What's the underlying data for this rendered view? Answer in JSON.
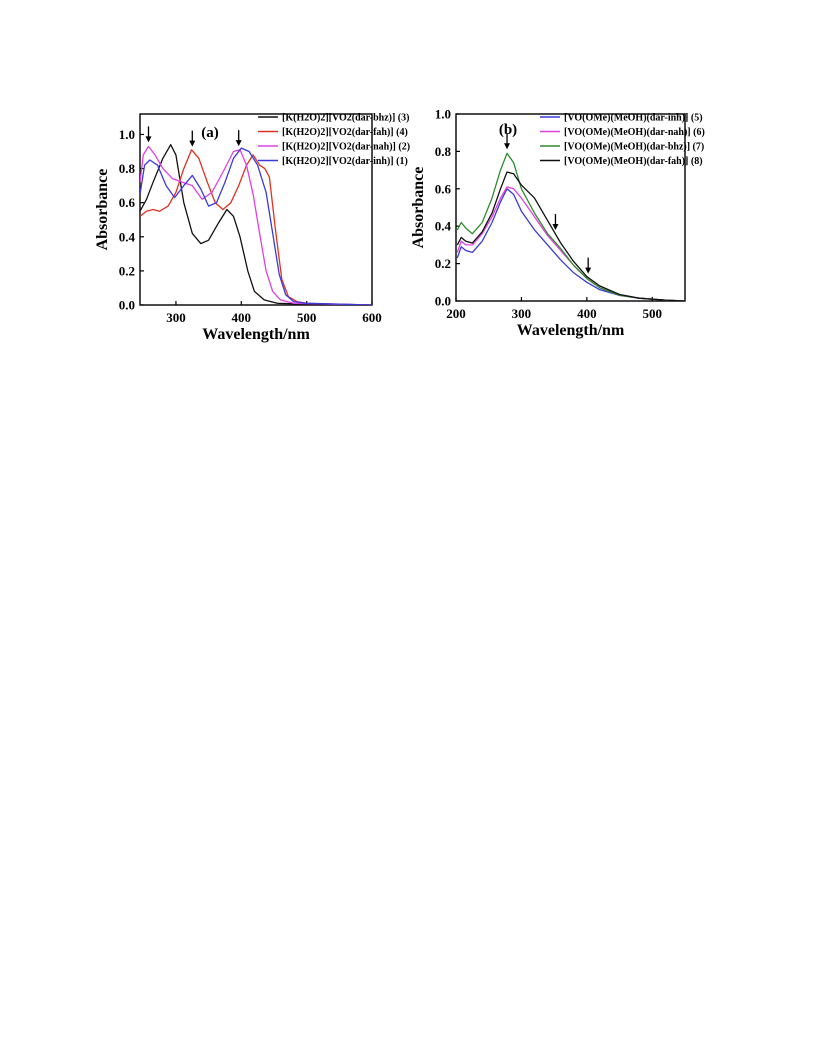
{
  "chart_data": [
    {
      "type": "line",
      "panel_label": "a",
      "xlabel": "Wavelength/nm",
      "ylabel": "Absorbance",
      "xlim": [
        245,
        600
      ],
      "ylim": [
        0,
        1.12
      ],
      "xticks": [
        300,
        400,
        500,
        600
      ],
      "yticks": [
        0.0,
        0.2,
        0.4,
        0.6,
        0.8,
        1.0
      ],
      "legend_position": "top-right",
      "arrows_at_x": [
        258,
        325,
        396
      ],
      "series": [
        {
          "name": "[K(H2O)2][VO2(dar-bhz)] (3)",
          "color": "#111111",
          "points": [
            [
              245,
              0.55
            ],
            [
              255,
              0.62
            ],
            [
              265,
              0.72
            ],
            [
              280,
              0.86
            ],
            [
              292,
              0.94
            ],
            [
              300,
              0.88
            ],
            [
              312,
              0.6
            ],
            [
              325,
              0.42
            ],
            [
              338,
              0.36
            ],
            [
              350,
              0.38
            ],
            [
              365,
              0.48
            ],
            [
              378,
              0.56
            ],
            [
              388,
              0.52
            ],
            [
              398,
              0.4
            ],
            [
              410,
              0.2
            ],
            [
              420,
              0.08
            ],
            [
              435,
              0.03
            ],
            [
              455,
              0.01
            ],
            [
              500,
              0.005
            ],
            [
              600,
              0.0
            ]
          ]
        },
        {
          "name": "[K(H2O)2][VO2(dar-fah)] (4)",
          "color": "#e03020",
          "points": [
            [
              245,
              0.52
            ],
            [
              255,
              0.55
            ],
            [
              265,
              0.56
            ],
            [
              275,
              0.55
            ],
            [
              288,
              0.58
            ],
            [
              300,
              0.66
            ],
            [
              312,
              0.8
            ],
            [
              324,
              0.91
            ],
            [
              335,
              0.86
            ],
            [
              348,
              0.72
            ],
            [
              360,
              0.6
            ],
            [
              372,
              0.56
            ],
            [
              384,
              0.6
            ],
            [
              396,
              0.7
            ],
            [
              408,
              0.82
            ],
            [
              418,
              0.88
            ],
            [
              428,
              0.82
            ],
            [
              436,
              0.8
            ],
            [
              443,
              0.75
            ],
            [
              452,
              0.45
            ],
            [
              462,
              0.15
            ],
            [
              472,
              0.05
            ],
            [
              485,
              0.02
            ],
            [
              500,
              0.01
            ],
            [
              600,
              0.0
            ]
          ]
        },
        {
          "name": "[K(H2O)2][VO2(dar-nah)] (2)",
          "color": "#e040e0",
          "points": [
            [
              245,
              0.72
            ],
            [
              250,
              0.88
            ],
            [
              258,
              0.93
            ],
            [
              268,
              0.88
            ],
            [
              280,
              0.8
            ],
            [
              295,
              0.74
            ],
            [
              310,
              0.72
            ],
            [
              325,
              0.7
            ],
            [
              340,
              0.62
            ],
            [
              355,
              0.66
            ],
            [
              372,
              0.78
            ],
            [
              388,
              0.9
            ],
            [
              398,
              0.91
            ],
            [
              408,
              0.82
            ],
            [
              418,
              0.65
            ],
            [
              428,
              0.42
            ],
            [
              438,
              0.2
            ],
            [
              448,
              0.08
            ],
            [
              460,
              0.03
            ],
            [
              480,
              0.01
            ],
            [
              600,
              0.0
            ]
          ]
        },
        {
          "name": "[K(H2O)2][VO2(dar-inh)] (1)",
          "color": "#3a3adc",
          "points": [
            [
              245,
              0.65
            ],
            [
              252,
              0.82
            ],
            [
              260,
              0.85
            ],
            [
              272,
              0.82
            ],
            [
              285,
              0.7
            ],
            [
              298,
              0.63
            ],
            [
              312,
              0.7
            ],
            [
              325,
              0.76
            ],
            [
              338,
              0.68
            ],
            [
              350,
              0.58
            ],
            [
              362,
              0.6
            ],
            [
              375,
              0.72
            ],
            [
              388,
              0.86
            ],
            [
              400,
              0.92
            ],
            [
              412,
              0.9
            ],
            [
              425,
              0.82
            ],
            [
              438,
              0.66
            ],
            [
              448,
              0.42
            ],
            [
              458,
              0.18
            ],
            [
              468,
              0.06
            ],
            [
              480,
              0.02
            ],
            [
              500,
              0.01
            ],
            [
              600,
              0.0
            ]
          ]
        }
      ]
    },
    {
      "type": "line",
      "panel_label": "b",
      "xlabel": "Wavelength/nm",
      "ylabel": "Absorbance",
      "xlim": [
        200,
        550
      ],
      "ylim": [
        0,
        1.0
      ],
      "xticks": [
        200,
        300,
        400,
        500
      ],
      "yticks": [
        0.0,
        0.2,
        0.4,
        0.6,
        0.8,
        1.0
      ],
      "legend_position": "top-right",
      "arrows_at_x": [
        278,
        352,
        402
      ],
      "series": [
        {
          "name": "[VO(OMe)(MeOH)(dar-inh)] (5)",
          "color": "#3a3adc",
          "points": [
            [
              202,
              0.23
            ],
            [
              208,
              0.29
            ],
            [
              215,
              0.27
            ],
            [
              225,
              0.26
            ],
            [
              240,
              0.32
            ],
            [
              255,
              0.42
            ],
            [
              268,
              0.53
            ],
            [
              278,
              0.6
            ],
            [
              288,
              0.57
            ],
            [
              300,
              0.48
            ],
            [
              320,
              0.38
            ],
            [
              340,
              0.3
            ],
            [
              360,
              0.22
            ],
            [
              380,
              0.15
            ],
            [
              400,
              0.1
            ],
            [
              420,
              0.06
            ],
            [
              450,
              0.03
            ],
            [
              480,
              0.015
            ],
            [
              520,
              0.005
            ],
            [
              550,
              0.0
            ]
          ]
        },
        {
          "name": "[VO(OMe)(MeOH)(dar-nah)] (6)",
          "color": "#e040e0",
          "points": [
            [
              202,
              0.26
            ],
            [
              208,
              0.32
            ],
            [
              215,
              0.3
            ],
            [
              225,
              0.3
            ],
            [
              240,
              0.36
            ],
            [
              255,
              0.45
            ],
            [
              268,
              0.55
            ],
            [
              278,
              0.61
            ],
            [
              288,
              0.6
            ],
            [
              300,
              0.55
            ],
            [
              320,
              0.45
            ],
            [
              340,
              0.35
            ],
            [
              360,
              0.27
            ],
            [
              380,
              0.19
            ],
            [
              400,
              0.12
            ],
            [
              420,
              0.07
            ],
            [
              450,
              0.03
            ],
            [
              480,
              0.015
            ],
            [
              520,
              0.005
            ],
            [
              550,
              0.0
            ]
          ]
        },
        {
          "name": "[VO(OMe)(MeOH)(dar-bhz)] (7)",
          "color": "#2e8b2e",
          "points": [
            [
              202,
              0.38
            ],
            [
              208,
              0.42
            ],
            [
              215,
              0.39
            ],
            [
              225,
              0.36
            ],
            [
              240,
              0.42
            ],
            [
              255,
              0.55
            ],
            [
              268,
              0.7
            ],
            [
              278,
              0.79
            ],
            [
              288,
              0.74
            ],
            [
              300,
              0.6
            ],
            [
              320,
              0.47
            ],
            [
              340,
              0.36
            ],
            [
              360,
              0.28
            ],
            [
              380,
              0.19
            ],
            [
              400,
              0.12
            ],
            [
              420,
              0.07
            ],
            [
              450,
              0.03
            ],
            [
              480,
              0.015
            ],
            [
              520,
              0.005
            ],
            [
              550,
              0.0
            ]
          ]
        },
        {
          "name": "[VO(OMe)(MeOH)(dar-fah)] (8)",
          "color": "#111111",
          "points": [
            [
              202,
              0.3
            ],
            [
              208,
              0.34
            ],
            [
              215,
              0.32
            ],
            [
              225,
              0.31
            ],
            [
              240,
              0.37
            ],
            [
              255,
              0.47
            ],
            [
              268,
              0.6
            ],
            [
              278,
              0.69
            ],
            [
              288,
              0.68
            ],
            [
              300,
              0.62
            ],
            [
              320,
              0.55
            ],
            [
              340,
              0.43
            ],
            [
              360,
              0.31
            ],
            [
              380,
              0.21
            ],
            [
              400,
              0.13
            ],
            [
              420,
              0.08
            ],
            [
              450,
              0.035
            ],
            [
              480,
              0.015
            ],
            [
              520,
              0.005
            ],
            [
              550,
              0.0
            ]
          ]
        }
      ]
    }
  ]
}
